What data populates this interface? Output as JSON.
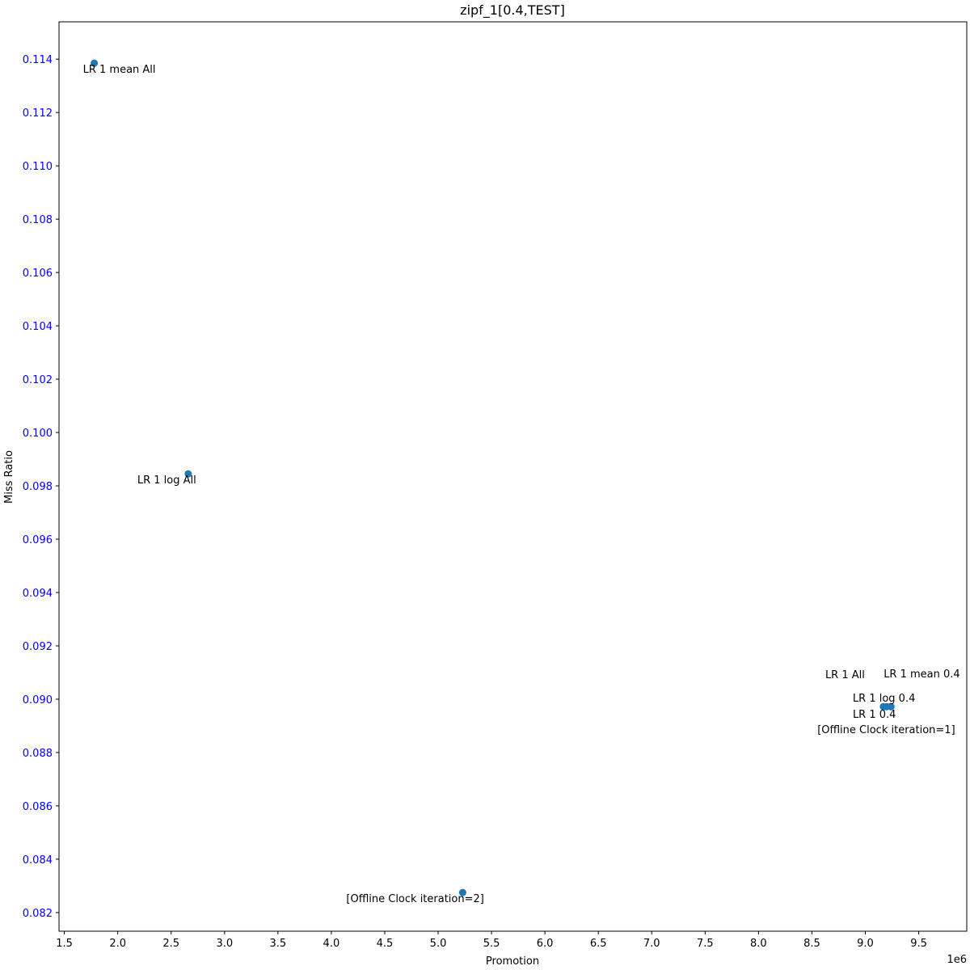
{
  "chart_data": {
    "type": "scatter",
    "title": "zipf_1[0.4,TEST]",
    "xlabel": "Promotion",
    "ylabel": "Miss Ratio",
    "x_offset_label": "1e6",
    "xlim": [
      1.45,
      9.95
    ],
    "ylim": [
      0.0813,
      0.1154
    ],
    "xticks": [
      1.5,
      2.0,
      2.5,
      3.0,
      3.5,
      4.0,
      4.5,
      5.0,
      5.5,
      6.0,
      6.5,
      7.0,
      7.5,
      8.0,
      8.5,
      9.0,
      9.5
    ],
    "xtick_labels": [
      "1.5",
      "2.0",
      "2.5",
      "3.0",
      "3.5",
      "4.0",
      "4.5",
      "5.0",
      "5.5",
      "6.0",
      "6.5",
      "7.0",
      "7.5",
      "8.0",
      "8.5",
      "9.0",
      "9.5"
    ],
    "yticks": [
      0.082,
      0.084,
      0.086,
      0.088,
      0.09,
      0.092,
      0.094,
      0.096,
      0.098,
      0.1,
      0.102,
      0.104,
      0.106,
      0.108,
      0.11,
      0.112,
      0.114
    ],
    "ytick_labels": [
      "0.082",
      "0.084",
      "0.086",
      "0.088",
      "0.090",
      "0.092",
      "0.094",
      "0.096",
      "0.098",
      "0.100",
      "0.102",
      "0.104",
      "0.106",
      "0.108",
      "0.110",
      "0.112",
      "0.114"
    ],
    "ytick_color": "#0000ff",
    "marker_color": "#1f77b4",
    "grid": false,
    "points": [
      {
        "x": 1.78,
        "y": 0.11385,
        "label": "LR 1 mean All"
      },
      {
        "x": 2.66,
        "y": 0.09845,
        "label": "LR 1 log All"
      },
      {
        "x": 5.23,
        "y": 0.08275,
        "label": "[Offline Clock iteration=2]"
      },
      {
        "x": 9.17,
        "y": 0.08972,
        "label": "LR 1 All"
      },
      {
        "x": 9.24,
        "y": 0.08972,
        "label": "LR 1 mean 0.4"
      },
      {
        "x": 9.2,
        "y": 0.08972,
        "label": "LR 1 log 0.4"
      },
      {
        "x": 9.17,
        "y": 0.08972,
        "label": "LR 1 0.4"
      },
      {
        "x": 9.24,
        "y": 0.08972,
        "label": "[Offline Clock iteration=1]"
      }
    ]
  }
}
